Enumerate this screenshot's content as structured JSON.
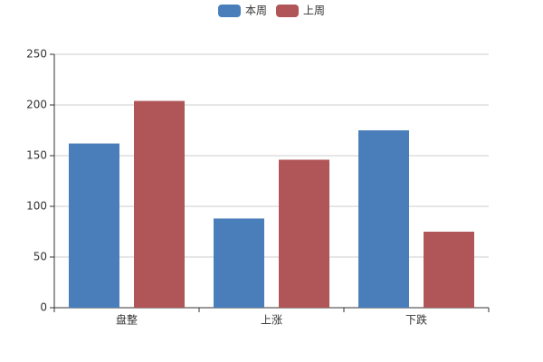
{
  "chart_data": {
    "type": "bar",
    "categories": [
      "盘整",
      "上涨",
      "下跌"
    ],
    "series": [
      {
        "name": "本周",
        "color": "#4a7ebb",
        "values": [
          162,
          88,
          175
        ]
      },
      {
        "name": "上周",
        "color": "#b05558",
        "values": [
          204,
          146,
          75
        ]
      }
    ],
    "ylim": [
      0,
      250
    ],
    "yticks": [
      0,
      50,
      100,
      150,
      200,
      250
    ],
    "grid": true,
    "legend": "top"
  }
}
